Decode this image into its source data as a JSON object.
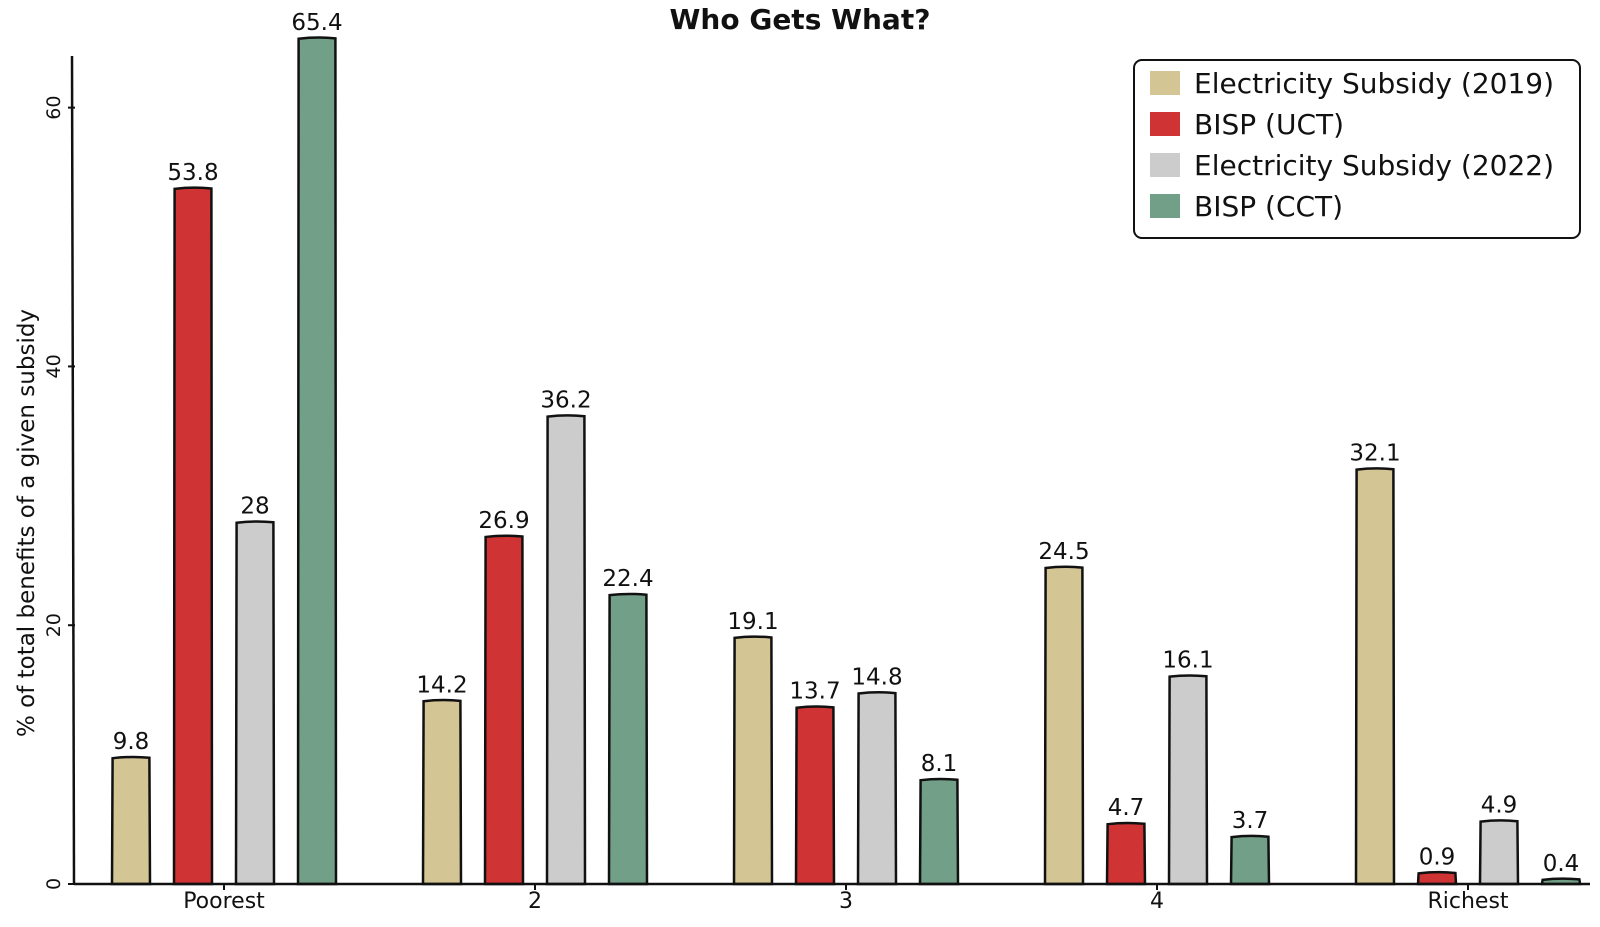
{
  "chart_data": {
    "type": "bar",
    "title": "Who Gets What?",
    "xlabel": "",
    "ylabel": "% of total benefits of a given subsidy",
    "categories": [
      "Poorest",
      "2",
      "3",
      "4",
      "Richest"
    ],
    "series": [
      {
        "name": "Electricity Subsidy (2019)",
        "color": "#d3c594",
        "values": [
          9.8,
          14.2,
          19.1,
          24.5,
          32.1
        ],
        "labels": [
          "9.8",
          "14.2",
          "19.1",
          "24.5",
          "32.1"
        ]
      },
      {
        "name": "BISP (UCT)",
        "color": "#cf3333",
        "values": [
          53.8,
          26.9,
          13.7,
          4.7,
          0.9
        ],
        "labels": [
          "53.8",
          "26.9",
          "13.7",
          "4.7",
          "0.9"
        ]
      },
      {
        "name": "Electricity Subsidy (2022)",
        "color": "#cccccc",
        "values": [
          28,
          36.2,
          14.8,
          16.1,
          4.9
        ],
        "labels": [
          "28",
          "36.2",
          "14.8",
          "16.1",
          "4.9"
        ]
      },
      {
        "name": "BISP (CCT)",
        "color": "#729f88",
        "values": [
          65.4,
          22.4,
          8.1,
          3.7,
          0.4
        ],
        "labels": [
          "65.4",
          "22.4",
          "8.1",
          "3.7",
          "0.4"
        ]
      }
    ],
    "ylim": [
      0,
      66
    ],
    "yticks": [
      0,
      20,
      40,
      60
    ],
    "ytick_labels": [
      "0",
      "20",
      "40",
      "60"
    ],
    "grid": false,
    "legend": "top-right"
  }
}
